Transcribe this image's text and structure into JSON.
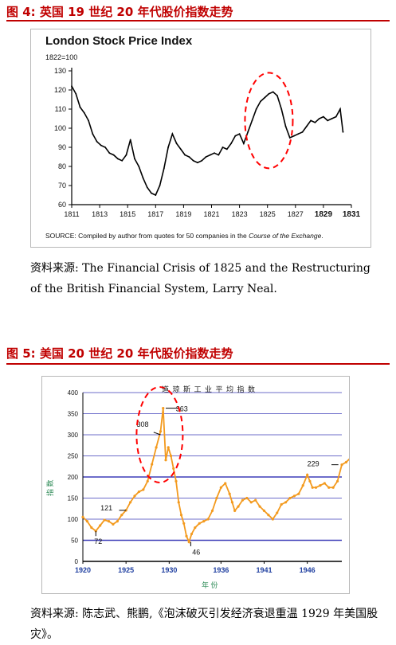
{
  "figure1": {
    "caption": "图 4:  英国 19 世纪 20 年代股价指数走势",
    "source": "资料来源:   The Financial Crisis of 1825 and the Restructuring of the British Financial System, Larry Neal."
  },
  "figure2": {
    "caption": "图 5:  美国 20 世纪 20 年代股价指数走势",
    "source": "资料来源: 陈志武、熊鹏,《泡沫破灭引发经济衰退重温 1929 年美国股灾》。"
  },
  "colors": {
    "caption": "#c00000",
    "line2": "#f39a1e",
    "grid2": "#3d3db8",
    "annotation": "#ff0000",
    "line1": "#000000"
  },
  "chart_data": [
    {
      "type": "line",
      "title": "London Stock Price Index",
      "subtitle": "1822=100",
      "source_note_prefix": "SOURCE: Compiled by author from quotes for 50 companies in the ",
      "source_note_italic": "Course of the Exchange",
      "source_note_suffix": ".",
      "xlabel": "",
      "ylabel": "",
      "xlim": [
        1811,
        1831
      ],
      "ylim": [
        60,
        130
      ],
      "x_ticks": [
        "1811",
        "1813",
        "1815",
        "1817",
        "1819",
        "1821",
        "1823",
        "1825",
        "1827",
        "1829",
        "1831"
      ],
      "y_ticks": [
        "60",
        "70",
        "80",
        "90",
        "100",
        "110",
        "120",
        "130"
      ],
      "x": [
        1811.0,
        1811.3,
        1811.6,
        1811.9,
        1812.2,
        1812.5,
        1812.8,
        1813.1,
        1813.4,
        1813.7,
        1814.0,
        1814.3,
        1814.6,
        1814.9,
        1815.2,
        1815.5,
        1815.8,
        1816.1,
        1816.4,
        1816.7,
        1817.0,
        1817.3,
        1817.6,
        1817.9,
        1818.2,
        1818.5,
        1818.8,
        1819.1,
        1819.4,
        1819.7,
        1820.0,
        1820.3,
        1820.6,
        1820.9,
        1821.2,
        1821.5,
        1821.8,
        1822.1,
        1822.4,
        1822.7,
        1823.0,
        1823.3,
        1823.6,
        1823.9,
        1824.2,
        1824.5,
        1824.8,
        1825.1,
        1825.4,
        1825.7,
        1826.0,
        1826.3,
        1826.6,
        1826.9,
        1827.2,
        1827.5,
        1827.8,
        1828.1,
        1828.4,
        1828.7,
        1829.0,
        1829.3,
        1829.6,
        1829.9,
        1830.2,
        1830.4
      ],
      "values": [
        122,
        118,
        111,
        108,
        104,
        97,
        93,
        91,
        90,
        87,
        86,
        84,
        83,
        86,
        94,
        84,
        80,
        74,
        69,
        66,
        65,
        70,
        79,
        90,
        97,
        92,
        89,
        86,
        85,
        83,
        82,
        83,
        85,
        86,
        87,
        86,
        90,
        89,
        92,
        96,
        97,
        92,
        98,
        104,
        110,
        114,
        116,
        118,
        119,
        117,
        110,
        101,
        95,
        96,
        97,
        98,
        101,
        104,
        103,
        105,
        106,
        104,
        105,
        106,
        110,
        98
      ],
      "annotation": "red dashed ellipse around the 1824–1826 peak"
    },
    {
      "type": "line",
      "title": "道 琼 斯 工  业 平 均 指 数",
      "xlabel": "年  份",
      "ylabel": "指  数",
      "xlim": [
        1920,
        1950
      ],
      "ylim": [
        0,
        400
      ],
      "x_ticks": [
        "1920",
        "1925",
        "1930",
        "1936",
        "1941",
        "1946"
      ],
      "y_ticks": [
        "0",
        "50",
        "100",
        "150",
        "200",
        "250",
        "300",
        "350",
        "400"
      ],
      "labels": [
        "72",
        "121",
        "308",
        "363",
        "46",
        "229"
      ],
      "x": [
        1920.0,
        1920.5,
        1921.0,
        1921.5,
        1922.0,
        1922.5,
        1923.0,
        1923.5,
        1924.0,
        1924.5,
        1925.0,
        1925.5,
        1926.0,
        1926.5,
        1927.0,
        1927.5,
        1928.0,
        1928.5,
        1929.0,
        1929.3,
        1929.6,
        1929.9,
        1930.2,
        1930.5,
        1930.8,
        1931.1,
        1931.4,
        1931.7,
        1932.0,
        1932.3,
        1932.6,
        1933.0,
        1933.5,
        1934.0,
        1934.5,
        1935.0,
        1935.5,
        1936.0,
        1936.5,
        1937.0,
        1937.3,
        1937.6,
        1938.0,
        1938.5,
        1939.0,
        1939.5,
        1940.0,
        1940.5,
        1941.0,
        1941.5,
        1942.0,
        1942.5,
        1943.0,
        1943.5,
        1944.0,
        1944.5,
        1945.0,
        1945.5,
        1946.0,
        1946.3,
        1946.6,
        1947.0,
        1947.5,
        1948.0,
        1948.5,
        1949.0,
        1949.5,
        1950.0,
        1950.5,
        1951.0
      ],
      "values": [
        105,
        95,
        80,
        72,
        85,
        98,
        95,
        88,
        95,
        110,
        121,
        140,
        155,
        165,
        170,
        190,
        230,
        270,
        308,
        363,
        240,
        270,
        250,
        220,
        190,
        140,
        110,
        90,
        60,
        46,
        65,
        80,
        90,
        95,
        100,
        120,
        150,
        175,
        185,
        160,
        140,
        120,
        130,
        145,
        150,
        140,
        145,
        130,
        120,
        110,
        100,
        115,
        135,
        140,
        150,
        155,
        160,
        180,
        205,
        190,
        175,
        175,
        180,
        185,
        175,
        175,
        190,
        229,
        235,
        245
      ]
    }
  ]
}
